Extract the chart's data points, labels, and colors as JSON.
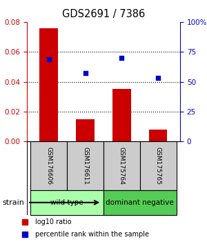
{
  "title": "GDS2691 / 7386",
  "samples": [
    "GSM176606",
    "GSM176611",
    "GSM175764",
    "GSM175765"
  ],
  "log10_ratio": [
    0.076,
    0.015,
    0.035,
    0.008
  ],
  "percentile_rank": [
    69,
    57,
    70,
    53
  ],
  "bar_color": "#cc0000",
  "dot_color": "#0000cc",
  "ylim_left": [
    0,
    0.08
  ],
  "ylim_right": [
    0,
    100
  ],
  "yticks_left": [
    0,
    0.02,
    0.04,
    0.06,
    0.08
  ],
  "yticks_right": [
    0,
    25,
    50,
    75,
    100
  ],
  "ytick_labels_right": [
    "0",
    "25",
    "50",
    "75",
    "100%"
  ],
  "groups": [
    {
      "label": "wild type",
      "indices": [
        0,
        1
      ],
      "color": "#aaffaa"
    },
    {
      "label": "dominant negative",
      "indices": [
        2,
        3
      ],
      "color": "#55cc55"
    }
  ],
  "strain_label": "strain",
  "legend_bar_label": "log10 ratio",
  "legend_dot_label": "percentile rank within the sample",
  "left_axis_color": "#cc0000",
  "right_axis_color": "#0000cc",
  "sample_box_color": "#cccccc",
  "background_color": "#ffffff"
}
